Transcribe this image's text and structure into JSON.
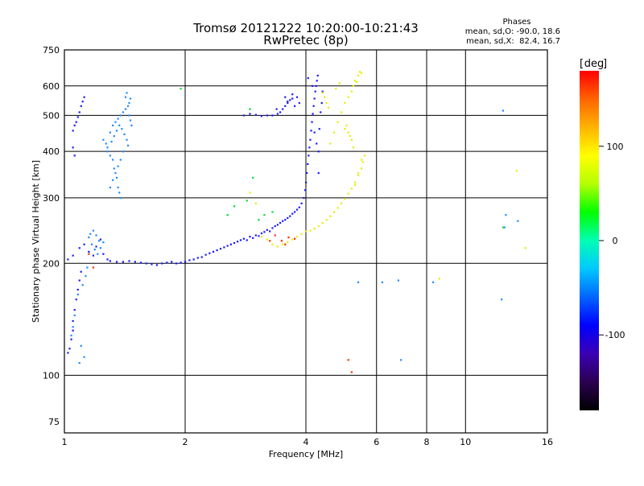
{
  "chart_data": {
    "type": "scatter",
    "title": "Tromsø 20121222 10:20:00-10:21:43",
    "subtitle": "RwPretec (8p)",
    "xlabel": "Frequency [MHz]",
    "ylabel": "Stationary phase Virtual Height [km]",
    "x_scale": "log",
    "y_scale": "log",
    "xlim": [
      1,
      16
    ],
    "ylim": [
      70,
      750
    ],
    "x_ticks": [
      1,
      2,
      4,
      6,
      8,
      10,
      16
    ],
    "y_ticks": [
      75,
      100,
      200,
      300,
      400,
      500,
      600,
      750
    ],
    "y_grid": [
      100,
      200,
      300,
      400,
      500,
      600
    ],
    "grid": true,
    "colorbar": {
      "unit": "deg",
      "range": [
        -180,
        180
      ],
      "ticks": [
        -100,
        0,
        100
      ],
      "colors": [
        "#000000",
        "#2a0050",
        "#3c00b4",
        "#0000ff",
        "#0064ff",
        "#00c8ff",
        "#00ffb4",
        "#00ff00",
        "#b4ff00",
        "#ffff00",
        "#ffb400",
        "#ff6400",
        "#ff0000"
      ]
    },
    "stats": {
      "heading": "Phases",
      "o_line": "mean, sd,O: -90.0, 18.6",
      "x_line": "mean, sd,X:  82.4, 16.7"
    },
    "series": [
      {
        "points": [
          [
            1.02,
            115
          ],
          [
            1.03,
            118
          ],
          [
            1.04,
            125
          ],
          [
            1.05,
            132
          ],
          [
            1.05,
            140
          ],
          [
            1.06,
            150
          ],
          [
            1.07,
            160
          ],
          [
            1.08,
            170
          ],
          [
            1.09,
            180
          ],
          [
            1.1,
            190
          ],
          [
            1.02,
            205
          ],
          [
            1.05,
            210
          ],
          [
            1.09,
            220
          ],
          [
            1.12,
            225
          ],
          [
            1.15,
            215
          ],
          [
            1.18,
            210
          ],
          [
            1.2,
            222
          ],
          [
            1.23,
            232
          ],
          [
            1.25,
            212
          ],
          [
            1.28,
            205
          ],
          [
            1.3,
            203
          ],
          [
            1.35,
            202
          ],
          [
            1.4,
            202
          ],
          [
            1.45,
            203
          ],
          [
            1.5,
            202
          ],
          [
            1.55,
            201
          ],
          [
            1.6,
            200
          ],
          [
            1.65,
            199
          ],
          [
            1.7,
            198
          ],
          [
            1.75,
            200
          ],
          [
            1.8,
            201
          ],
          [
            1.85,
            202
          ],
          [
            1.9,
            200
          ],
          [
            1.95,
            201
          ],
          [
            2.0,
            202
          ],
          [
            2.05,
            204
          ],
          [
            2.1,
            205
          ],
          [
            2.15,
            207
          ],
          [
            2.2,
            208
          ],
          [
            2.25,
            211
          ],
          [
            2.3,
            213
          ],
          [
            2.35,
            215
          ],
          [
            2.4,
            217
          ],
          [
            2.45,
            219
          ],
          [
            2.5,
            221
          ],
          [
            2.55,
            223
          ],
          [
            2.6,
            225
          ],
          [
            2.65,
            227
          ],
          [
            2.7,
            229
          ],
          [
            2.75,
            231
          ],
          [
            2.8,
            233
          ],
          [
            2.85,
            231
          ],
          [
            2.9,
            236
          ],
          [
            2.95,
            234
          ],
          [
            3.0,
            238
          ],
          [
            3.05,
            237
          ],
          [
            3.1,
            241
          ],
          [
            3.15,
            243
          ],
          [
            3.2,
            246
          ],
          [
            3.25,
            244
          ],
          [
            3.3,
            249
          ],
          [
            3.35,
            252
          ],
          [
            3.4,
            254
          ],
          [
            3.45,
            257
          ],
          [
            3.5,
            260
          ],
          [
            3.55,
            262
          ],
          [
            3.6,
            265
          ],
          [
            3.65,
            268
          ],
          [
            3.7,
            272
          ],
          [
            3.75,
            275
          ],
          [
            3.8,
            279
          ],
          [
            3.85,
            283
          ],
          [
            3.9,
            290
          ],
          [
            3.95,
            300
          ],
          [
            3.98,
            315
          ],
          [
            4.0,
            330
          ],
          [
            4.02,
            350
          ],
          [
            4.04,
            370
          ],
          [
            4.06,
            390
          ],
          [
            4.08,
            410
          ],
          [
            4.1,
            430
          ],
          [
            4.12,
            455
          ],
          [
            4.14,
            480
          ],
          [
            4.16,
            505
          ],
          [
            4.18,
            530
          ],
          [
            4.2,
            555
          ],
          [
            4.22,
            580
          ],
          [
            4.24,
            600
          ],
          [
            4.26,
            620
          ],
          [
            4.28,
            640
          ],
          [
            4.2,
            450
          ],
          [
            4.25,
            420
          ],
          [
            4.3,
            400
          ],
          [
            4.32,
            460
          ],
          [
            4.35,
            510
          ],
          [
            4.38,
            540
          ],
          [
            4.4,
            580
          ],
          [
            4.15,
            600
          ],
          [
            4.05,
            630
          ],
          [
            4.3,
            350
          ],
          [
            3.45,
            510
          ],
          [
            3.5,
            520
          ],
          [
            3.55,
            530
          ],
          [
            3.6,
            540
          ],
          [
            3.65,
            550
          ],
          [
            3.7,
            555
          ],
          [
            3.55,
            560
          ],
          [
            3.6,
            545
          ],
          [
            3.4,
            505
          ],
          [
            3.3,
            500
          ],
          [
            2.8,
            500
          ],
          [
            2.9,
            505
          ],
          [
            3.0,
            502
          ],
          [
            3.1,
            498
          ],
          [
            3.2,
            500
          ],
          [
            3.38,
            520
          ],
          [
            3.7,
            570
          ],
          [
            3.75,
            530
          ],
          [
            3.8,
            560
          ],
          [
            3.85,
            540
          ],
          [
            1.05,
            455
          ],
          [
            1.06,
            470
          ],
          [
            1.07,
            480
          ],
          [
            1.08,
            495
          ],
          [
            1.09,
            510
          ],
          [
            1.1,
            530
          ],
          [
            1.11,
            545
          ],
          [
            1.12,
            560
          ],
          [
            1.05,
            410
          ],
          [
            1.06,
            390
          ]
        ],
        "color": "#1a1aff"
      },
      {
        "points": [
          [
            1.25,
            430
          ],
          [
            1.27,
            420
          ],
          [
            1.28,
            400
          ],
          [
            1.3,
            390
          ],
          [
            1.32,
            380
          ],
          [
            1.33,
            360
          ],
          [
            1.35,
            340
          ],
          [
            1.36,
            320
          ],
          [
            1.37,
            310
          ],
          [
            1.38,
            300
          ],
          [
            1.3,
            450
          ],
          [
            1.32,
            470
          ],
          [
            1.34,
            480
          ],
          [
            1.36,
            490
          ],
          [
            1.38,
            500
          ],
          [
            1.4,
            510
          ],
          [
            1.42,
            520
          ],
          [
            1.44,
            530
          ],
          [
            1.45,
            540
          ],
          [
            1.46,
            555
          ],
          [
            1.28,
            410
          ],
          [
            1.31,
            425
          ],
          [
            1.33,
            440
          ],
          [
            1.35,
            455
          ],
          [
            1.37,
            470
          ],
          [
            1.39,
            460
          ],
          [
            1.41,
            445
          ],
          [
            1.43,
            430
          ],
          [
            1.44,
            415
          ],
          [
            1.4,
            400
          ],
          [
            1.38,
            380
          ],
          [
            1.36,
            365
          ],
          [
            1.34,
            350
          ],
          [
            1.32,
            335
          ],
          [
            1.3,
            320
          ],
          [
            1.45,
            500
          ],
          [
            1.46,
            485
          ],
          [
            1.47,
            470
          ],
          [
            1.42,
            560
          ],
          [
            1.43,
            575
          ],
          [
            1.15,
            235
          ],
          [
            1.16,
            240
          ],
          [
            1.18,
            245
          ],
          [
            1.2,
            238
          ],
          [
            1.22,
            230
          ],
          [
            1.17,
            225
          ],
          [
            1.19,
            218
          ],
          [
            1.21,
            212
          ],
          [
            1.23,
            220
          ],
          [
            1.25,
            228
          ],
          [
            1.04,
            128
          ],
          [
            1.05,
            135
          ],
          [
            1.06,
            145
          ],
          [
            1.08,
            165
          ],
          [
            1.1,
            120
          ],
          [
            1.12,
            112
          ],
          [
            1.09,
            108
          ],
          [
            1.11,
            175
          ],
          [
            1.13,
            185
          ],
          [
            1.14,
            195
          ],
          [
            5.4,
            178
          ],
          [
            6.2,
            178
          ],
          [
            6.8,
            180
          ],
          [
            8.3,
            178
          ],
          [
            12.4,
            515
          ],
          [
            12.5,
            250
          ],
          [
            12.6,
            270
          ],
          [
            13.5,
            260
          ],
          [
            12.3,
            160
          ],
          [
            6.9,
            110
          ]
        ],
        "color": "#1e8cff"
      },
      {
        "points": [
          [
            4.1,
            245
          ],
          [
            4.2,
            248
          ],
          [
            4.3,
            252
          ],
          [
            4.4,
            257
          ],
          [
            4.5,
            262
          ],
          [
            4.6,
            268
          ],
          [
            4.7,
            275
          ],
          [
            4.8,
            282
          ],
          [
            4.9,
            290
          ],
          [
            5.0,
            298
          ],
          [
            5.1,
            308
          ],
          [
            5.2,
            318
          ],
          [
            5.3,
            330
          ],
          [
            5.4,
            345
          ],
          [
            5.5,
            360
          ],
          [
            5.55,
            375
          ],
          [
            5.6,
            390
          ],
          [
            5.5,
            380
          ],
          [
            5.4,
            350
          ],
          [
            5.3,
            325
          ],
          [
            3.6,
            228
          ],
          [
            3.7,
            232
          ],
          [
            3.8,
            236
          ],
          [
            3.9,
            240
          ],
          [
            4.0,
            244
          ],
          [
            3.5,
            225
          ],
          [
            3.4,
            222
          ],
          [
            3.3,
            225
          ],
          [
            3.2,
            232
          ],
          [
            3.1,
            236
          ],
          [
            4.6,
            420
          ],
          [
            4.7,
            450
          ],
          [
            4.8,
            480
          ],
          [
            4.9,
            510
          ],
          [
            5.0,
            540
          ],
          [
            5.1,
            560
          ],
          [
            5.2,
            580
          ],
          [
            5.25,
            600
          ],
          [
            5.3,
            620
          ],
          [
            5.4,
            640
          ],
          [
            5.5,
            650
          ],
          [
            5.45,
            655
          ],
          [
            4.75,
            590
          ],
          [
            4.85,
            610
          ],
          [
            5.05,
            470
          ],
          [
            5.1,
            450
          ],
          [
            5.15,
            440
          ],
          [
            5.2,
            430
          ],
          [
            5.25,
            410
          ],
          [
            5.0,
            460
          ],
          [
            4.4,
            575
          ],
          [
            4.45,
            560
          ],
          [
            4.5,
            540
          ],
          [
            4.55,
            525
          ],
          [
            5.35,
            615
          ],
          [
            2.9,
            310
          ],
          [
            3.0,
            290
          ],
          [
            8.6,
            182
          ],
          [
            14.1,
            220
          ],
          [
            13.4,
            355
          ]
        ],
        "color": "#e6ee00"
      },
      {
        "points": [
          [
            1.15,
            212
          ],
          [
            3.55,
            225
          ],
          [
            3.62,
            235
          ],
          [
            3.75,
            233
          ],
          [
            3.25,
            230
          ],
          [
            3.35,
            238
          ],
          [
            3.48,
            230
          ],
          [
            1.18,
            195
          ],
          [
            5.1,
            110
          ],
          [
            5.2,
            102
          ]
        ],
        "color": "#ff2a00"
      },
      {
        "points": [
          [
            2.55,
            270
          ],
          [
            2.65,
            285
          ],
          [
            2.85,
            295
          ],
          [
            3.05,
            262
          ],
          [
            3.15,
            270
          ],
          [
            1.95,
            590
          ],
          [
            2.9,
            520
          ],
          [
            3.3,
            275
          ],
          [
            12.4,
            250
          ],
          [
            2.95,
            340
          ]
        ],
        "color": "#00dd33"
      }
    ]
  }
}
